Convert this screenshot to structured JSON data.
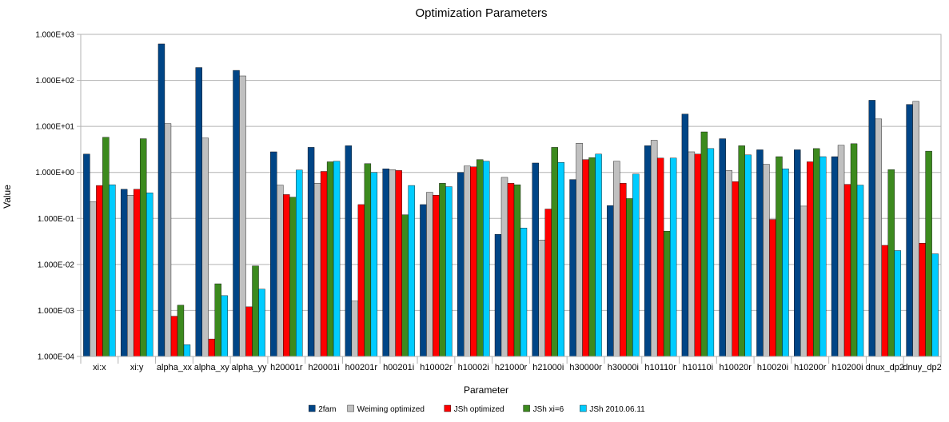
{
  "chart_data": {
    "type": "bar",
    "title": "Optimization Parameters",
    "xlabel": "Parameter",
    "ylabel": "Value",
    "yscale": "log",
    "ylim": [
      0.0001,
      1000
    ],
    "yticks": [
      0.0001,
      0.001,
      0.01,
      0.1,
      1,
      10,
      100,
      1000
    ],
    "ytick_labels": [
      "1.000E-04",
      "1.000E-03",
      "1.000E-02",
      "1.000E-01",
      "1.000E+00",
      "1.000E+01",
      "1.000E+02",
      "1.000E+03"
    ],
    "grid": "horizontal",
    "legend_position": "bottom",
    "categories": [
      "xi:x",
      "xi:y",
      "alpha_xx",
      "alpha_xy",
      "alpha_yy",
      "h20001r",
      "h20001i",
      "h00201r",
      "h00201i",
      "h10002r",
      "h10002i",
      "h21000r",
      "h21000i",
      "h30000r",
      "h30000i",
      "h10110r",
      "h10110i",
      "h10020r",
      "h10020i",
      "h10200r",
      "h10200i",
      "dnux_dp2",
      "dnuy_dp2"
    ],
    "series": [
      {
        "name": "2fam",
        "color": "#004586",
        "values": [
          2.5,
          0.43,
          620,
          190,
          165,
          2.8,
          3.5,
          3.8,
          1.2,
          0.2,
          1.0,
          0.045,
          1.6,
          0.7,
          0.19,
          3.8,
          18.5,
          5.4,
          3.1,
          3.1,
          2.2,
          37,
          30
        ]
      },
      {
        "name": "Weiming optimized",
        "color": "#c0c0c0",
        "values": [
          0.23,
          0.32,
          11.5,
          5.6,
          125,
          0.53,
          0.58,
          0.0016,
          1.15,
          0.37,
          1.38,
          0.78,
          0.034,
          4.3,
          1.75,
          5.0,
          2.8,
          1.1,
          1.5,
          0.185,
          3.9,
          14.5,
          35
        ]
      },
      {
        "name": "JSh optimized",
        "color": "#ff0000",
        "values": [
          0.52,
          0.43,
          0.00075,
          0.00024,
          0.0012,
          0.33,
          1.05,
          0.2,
          1.1,
          0.32,
          1.32,
          0.58,
          0.16,
          1.9,
          0.58,
          2.05,
          2.5,
          0.63,
          0.095,
          1.7,
          0.55,
          0.026,
          0.029
        ]
      },
      {
        "name": "JSh xi=6",
        "color": "#3c8a1e",
        "values": [
          5.8,
          5.4,
          0.0013,
          0.0038,
          0.0093,
          0.29,
          1.7,
          1.55,
          0.12,
          0.58,
          1.9,
          0.54,
          3.5,
          2.1,
          0.27,
          0.053,
          7.6,
          3.8,
          2.2,
          3.3,
          4.2,
          1.15,
          2.9
        ]
      },
      {
        "name": "JSh 2010.06.11",
        "color": "#00ccff",
        "values": [
          0.54,
          0.36,
          0.00018,
          0.0021,
          0.0029,
          1.13,
          1.75,
          1.0,
          0.52,
          0.49,
          1.75,
          0.062,
          1.65,
          2.5,
          0.92,
          2.05,
          3.3,
          2.4,
          1.2,
          2.2,
          0.53,
          0.02,
          0.017
        ]
      }
    ]
  }
}
